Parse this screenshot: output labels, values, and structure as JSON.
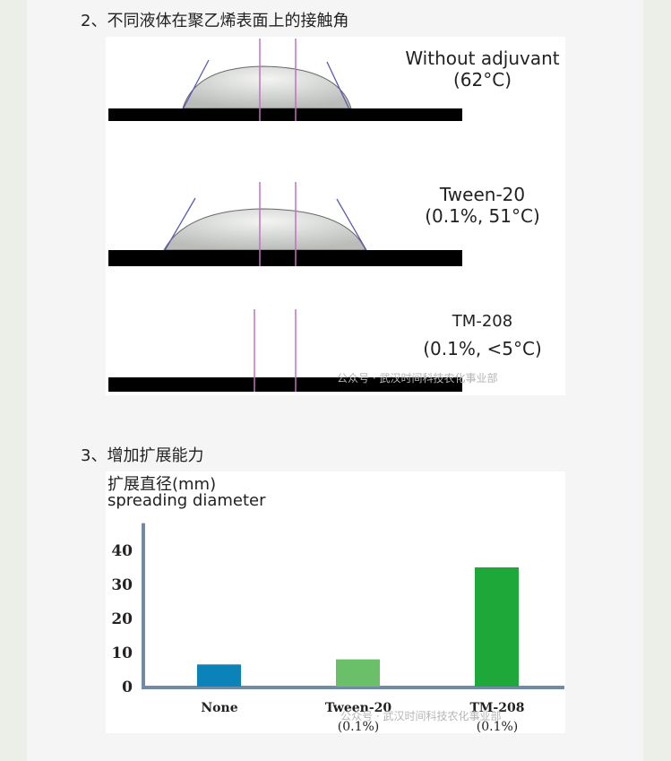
{
  "section2": {
    "heading": "2、不同液体在聚乙烯表面上的接触角",
    "samples": [
      {
        "name": "Without adjuvant",
        "detail": "(62°C)"
      },
      {
        "name": "Tween-20",
        "detail": "(0.1%, 51°C)"
      },
      {
        "name": "TM-208",
        "detail": "(0.1%, <5°C)"
      }
    ],
    "watermark": "公众号 · 武汉时间科技农化事业部"
  },
  "section3": {
    "heading": "3、增加扩展能力",
    "watermark": "公众号 · 武汉时间科技农化事业部"
  },
  "chart_data": {
    "type": "bar",
    "ylabel": "扩展直径(mm)",
    "ylabel_en": "spreading diameter",
    "categories": [
      "None",
      "Tween-20",
      "TM-208"
    ],
    "category_sublabels": [
      "",
      "(0.1%)",
      "(0.1%)"
    ],
    "values": [
      6.5,
      8,
      35
    ],
    "colors": [
      "#0b82b8",
      "#6abf69",
      "#1ea83a"
    ],
    "yticks": [
      0,
      10,
      20,
      30,
      40
    ],
    "ylim": [
      0,
      48
    ],
    "grid": false,
    "axis_color": "#6f8ba6"
  }
}
